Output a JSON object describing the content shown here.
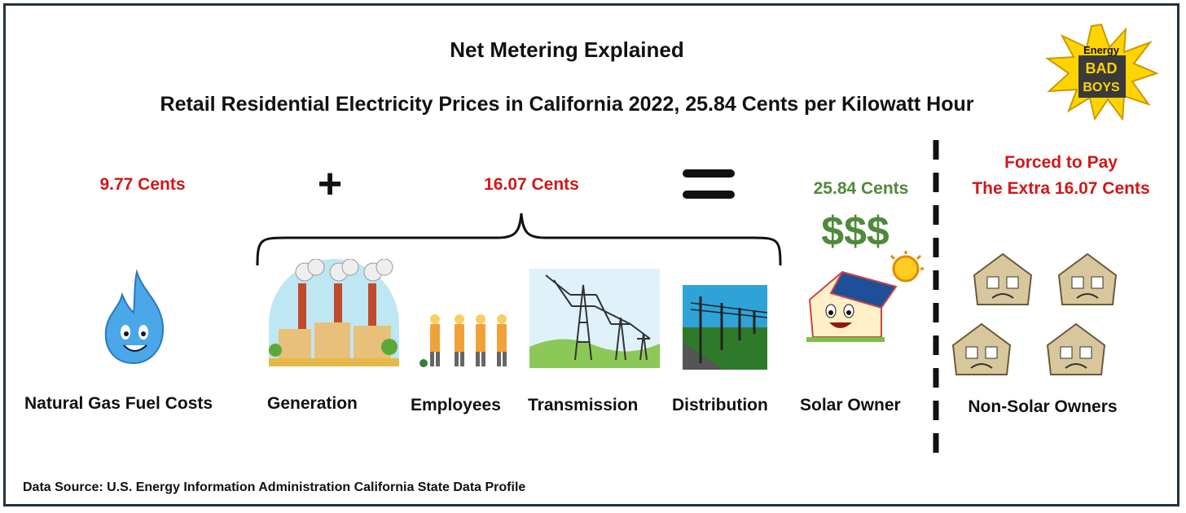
{
  "title": "Net Metering Explained",
  "subtitle": "Retail Residential Electricity Prices in California 2022, 25.84 Cents per Kilowatt Hour",
  "logo_text": [
    "Energy",
    "BAD",
    "BOYS"
  ],
  "operators": {
    "plus": "+",
    "equals": "="
  },
  "values": {
    "fuel": "9.77 Cents",
    "other": "16.07 Cents",
    "total": "25.84 Cents",
    "dollars": "$$$",
    "forced_line1": "Forced to Pay",
    "forced_line2": "The Extra 16.07 Cents"
  },
  "labels": {
    "natural_gas": "Natural Gas Fuel Costs",
    "generation": "Generation",
    "employees": "Employees",
    "transmission": "Transmission",
    "distribution": "Distribution",
    "solar_owner": "Solar Owner",
    "non_solar": "Non-Solar Owners"
  },
  "source": "Data Source: U.S. Energy Information Administration California State Data Profile",
  "colors": {
    "accent_red": "#d01818",
    "accent_green": "#4f8a3a",
    "frame": "#1f3344"
  }
}
